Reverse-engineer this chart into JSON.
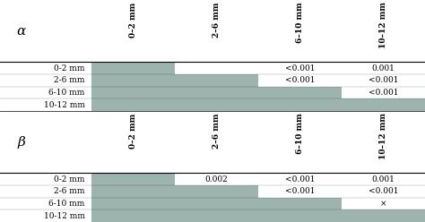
{
  "title_alpha": "α",
  "title_beta": "β",
  "col_labels": [
    "0–2 mm",
    "2–6 mm",
    "6–10 mm",
    "10–12 mm"
  ],
  "row_labels": [
    "0-2 mm",
    "2-6 mm",
    "6-10 mm",
    "10-12 mm"
  ],
  "alpha_values": [
    [
      "",
      "",
      "<0.001",
      "0.001"
    ],
    [
      "",
      "",
      "<0.001",
      "<0.001"
    ],
    [
      "",
      "",
      "",
      "<0.001"
    ],
    [
      "",
      "",
      "",
      ""
    ]
  ],
  "beta_values": [
    [
      "",
      "0.002",
      "<0.001",
      "0.001"
    ],
    [
      "",
      "",
      "<0.001",
      "<0.001"
    ],
    [
      "",
      "",
      "",
      "×"
    ],
    [
      "",
      "",
      "",
      ""
    ]
  ],
  "gray_color": "#9db3ae",
  "font_size": 6.5,
  "label_font_size": 6.5,
  "header_font_size": 9
}
